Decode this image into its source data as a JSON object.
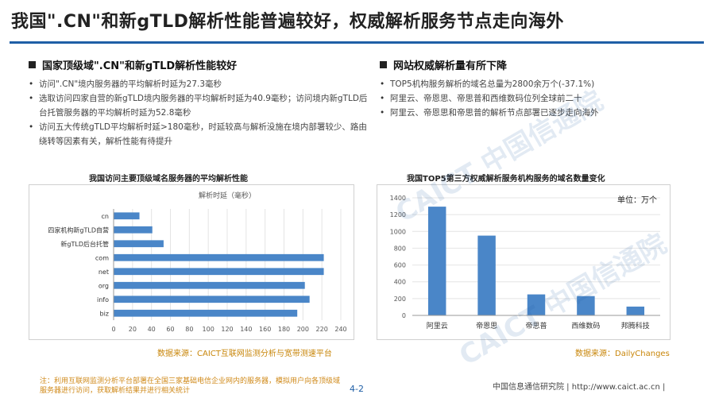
{
  "title": "我国\".CN\"和新gTLD解析性能普遍较好，权威解析服务节点走向海外",
  "left": {
    "heading": "国家顶级域\".CN\"和新gTLD解析性能较好",
    "bullets": [
      "访问\".CN\"境内服务器的平均解析时延为27.3毫秒",
      "选取访问四家自营的新gTLD境内服务器的平均解析时延为40.9毫秒；访问境内新gTLD后台托管服务器的平均解析时延为52.8毫秒",
      "访问五大传统gTLD平均解析时延>180毫秒，时延较高与解析没施在境内部署较少、路由绕转等因素有关，解析性能有待提升"
    ],
    "source": "数据来源：CAICT互联网监测分析与宽带测速平台"
  },
  "right": {
    "heading": "网站权威解析量有所下降",
    "bullets": [
      "TOP5机构服务解析的域名总量为2800余万个(-37.1%)",
      "阿里云、帝恩思、帝思普和西维数码位列全球前二十",
      "阿里云、帝恩思和帝思普的解析节点部署已逐步走向海外"
    ],
    "source": "数据来源：DailyChanges"
  },
  "note": "注：利用互联网监测分析平台部署在全国三家基础电信企业网内的服务器，模拟用户向各顶级域服务器进行访问，获取解析结果并进行相关统计",
  "page_number": "4-2",
  "footer": "中国信息通信研究院  |  http://www.caict.ac.cn  |",
  "watermarks": [
    "CAICT 中国信通院",
    "CAICT 中国信通院"
  ],
  "colors": {
    "bar": "#4a86c8",
    "accent": "#1f5fa6",
    "source": "#c8860a"
  },
  "chart_data": [
    {
      "type": "bar",
      "orientation": "horizontal",
      "title": "我国访问主要顶级域名服务器的平均解析性能",
      "series_label": "解析时延（毫秒）",
      "categories": [
        "cn",
        "四家机构新gTLD自营",
        "新gTLD后台托管",
        "com",
        "net",
        "org",
        "info",
        "biz"
      ],
      "values": [
        27.3,
        40.9,
        52.8,
        222,
        222,
        202,
        207,
        194
      ],
      "xlim": [
        0,
        240
      ],
      "xticks": [
        0,
        20,
        40,
        60,
        80,
        100,
        120,
        140,
        160,
        180,
        200,
        220,
        240
      ]
    },
    {
      "type": "bar",
      "title": "我国TOP5第三方权威解析服务机构服务的域名数量变化",
      "unit_label": "单位：万个",
      "categories": [
        "阿里云",
        "帝恩思",
        "帝思普",
        "西维数码",
        "邦腾科技"
      ],
      "values": [
        1295,
        950,
        250,
        230,
        105
      ],
      "ylim": [
        0,
        1400
      ],
      "yticks": [
        0,
        200,
        400,
        600,
        800,
        1000,
        1200,
        1400
      ]
    }
  ]
}
